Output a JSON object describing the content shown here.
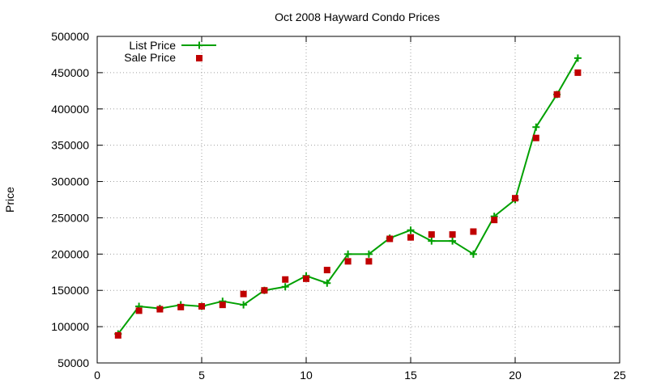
{
  "chart_data": {
    "type": "line",
    "title": "Oct 2008 Hayward Condo Prices",
    "xlabel": "",
    "ylabel": "Price",
    "xlim": [
      0,
      25
    ],
    "ylim": [
      50000,
      500000
    ],
    "x_ticks": [
      0,
      5,
      10,
      15,
      20,
      25
    ],
    "y_ticks": [
      50000,
      100000,
      150000,
      200000,
      250000,
      300000,
      350000,
      400000,
      450000,
      500000
    ],
    "grid": true,
    "legend_position": "top-left",
    "series": [
      {
        "name": "List Price",
        "style": "line-with-plus-markers",
        "color": "#00a000",
        "x": [
          1,
          2,
          3,
          4,
          5,
          6,
          7,
          8,
          9,
          10,
          11,
          12,
          13,
          14,
          15,
          16,
          17,
          18,
          19,
          20,
          21,
          22,
          23
        ],
        "y": [
          90000,
          128000,
          125000,
          130000,
          128000,
          135000,
          130000,
          150000,
          155000,
          170000,
          160000,
          200000,
          200000,
          222000,
          233000,
          218000,
          218000,
          200000,
          252000,
          275000,
          375000,
          420000,
          470000
        ]
      },
      {
        "name": "Sale Price",
        "style": "square-markers",
        "color": "#c00000",
        "x": [
          1,
          2,
          3,
          4,
          5,
          6,
          7,
          8,
          9,
          10,
          11,
          12,
          13,
          14,
          15,
          16,
          17,
          18,
          19,
          20,
          21,
          22,
          23
        ],
        "y": [
          88000,
          122000,
          124000,
          127000,
          128000,
          130000,
          145000,
          150000,
          165000,
          166000,
          178000,
          190000,
          190000,
          221000,
          223000,
          227000,
          227000,
          231000,
          247000,
          277000,
          360000,
          420000,
          450000
        ]
      }
    ]
  }
}
